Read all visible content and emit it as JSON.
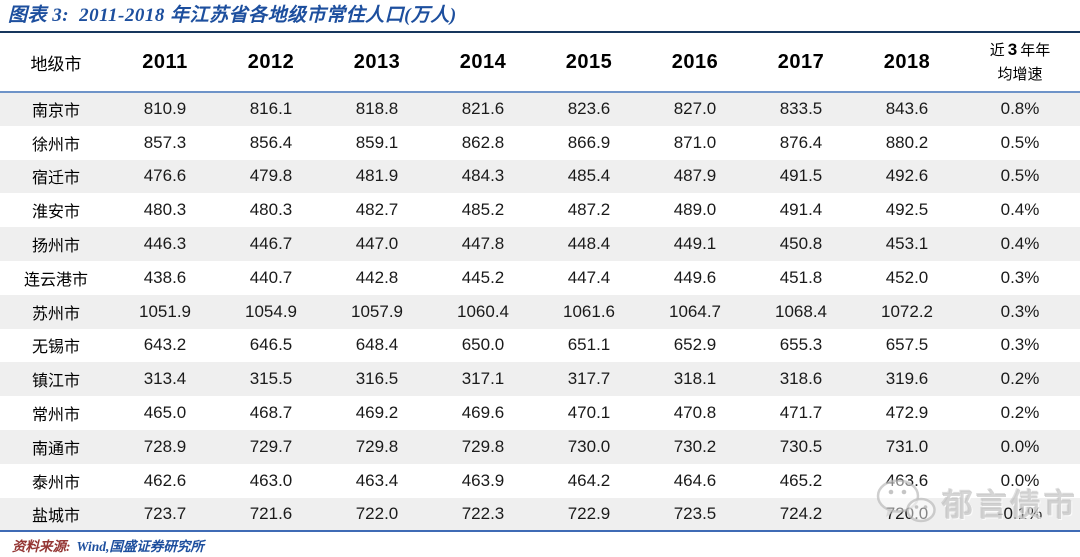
{
  "title": {
    "figure_label": "图表 3:",
    "text": "2011-2018 年江苏省各地级市常住人口(万人)"
  },
  "table": {
    "city_header": "地级市",
    "year_headers": [
      "2011",
      "2012",
      "2013",
      "2014",
      "2015",
      "2016",
      "2017",
      "2018"
    ],
    "growth_header": {
      "part1": "近",
      "part2": "3",
      "part3": "年年",
      "line2": "均增速"
    },
    "rows": [
      {
        "city": "南京市",
        "values": [
          "810.9",
          "816.1",
          "818.8",
          "821.6",
          "823.6",
          "827.0",
          "833.5",
          "843.6"
        ],
        "growth": "0.8%"
      },
      {
        "city": "徐州市",
        "values": [
          "857.3",
          "856.4",
          "859.1",
          "862.8",
          "866.9",
          "871.0",
          "876.4",
          "880.2"
        ],
        "growth": "0.5%"
      },
      {
        "city": "宿迁市",
        "values": [
          "476.6",
          "479.8",
          "481.9",
          "484.3",
          "485.4",
          "487.9",
          "491.5",
          "492.6"
        ],
        "growth": "0.5%"
      },
      {
        "city": "淮安市",
        "values": [
          "480.3",
          "480.3",
          "482.7",
          "485.2",
          "487.2",
          "489.0",
          "491.4",
          "492.5"
        ],
        "growth": "0.4%"
      },
      {
        "city": "扬州市",
        "values": [
          "446.3",
          "446.7",
          "447.0",
          "447.8",
          "448.4",
          "449.1",
          "450.8",
          "453.1"
        ],
        "growth": "0.4%"
      },
      {
        "city": "连云港市",
        "values": [
          "438.6",
          "440.7",
          "442.8",
          "445.2",
          "447.4",
          "449.6",
          "451.8",
          "452.0"
        ],
        "growth": "0.3%"
      },
      {
        "city": "苏州市",
        "values": [
          "1051.9",
          "1054.9",
          "1057.9",
          "1060.4",
          "1061.6",
          "1064.7",
          "1068.4",
          "1072.2"
        ],
        "growth": "0.3%"
      },
      {
        "city": "无锡市",
        "values": [
          "643.2",
          "646.5",
          "648.4",
          "650.0",
          "651.1",
          "652.9",
          "655.3",
          "657.5"
        ],
        "growth": "0.3%"
      },
      {
        "city": "镇江市",
        "values": [
          "313.4",
          "315.5",
          "316.5",
          "317.1",
          "317.7",
          "318.1",
          "318.6",
          "319.6"
        ],
        "growth": "0.2%"
      },
      {
        "city": "常州市",
        "values": [
          "465.0",
          "468.7",
          "469.2",
          "469.6",
          "470.1",
          "470.8",
          "471.7",
          "472.9"
        ],
        "growth": "0.2%"
      },
      {
        "city": "南通市",
        "values": [
          "728.9",
          "729.7",
          "729.8",
          "729.8",
          "730.0",
          "730.2",
          "730.5",
          "731.0"
        ],
        "growth": "0.0%"
      },
      {
        "city": "泰州市",
        "values": [
          "462.6",
          "463.0",
          "463.4",
          "463.9",
          "464.2",
          "464.6",
          "465.2",
          "463.6"
        ],
        "growth": "0.0%"
      },
      {
        "city": "盐城市",
        "values": [
          "723.7",
          "721.6",
          "722.0",
          "722.3",
          "722.9",
          "723.5",
          "724.2",
          "720.0"
        ],
        "growth": "-0.1%"
      }
    ]
  },
  "footer": {
    "source_label": "资料来源:",
    "source_text": "Wind,国盛证券研究所"
  },
  "watermark": {
    "icon": "wechat-icon",
    "text": "郁言债市"
  },
  "colors": {
    "title_blue": "#1D4F9E",
    "top_rule": "#17365D",
    "header_rule": "#6E93C8",
    "bottom_rule": "#3F6BB5",
    "row_stripe": "#EFEFEF",
    "source_red": "#943634",
    "watermark_gray": "#BEBEBE"
  }
}
